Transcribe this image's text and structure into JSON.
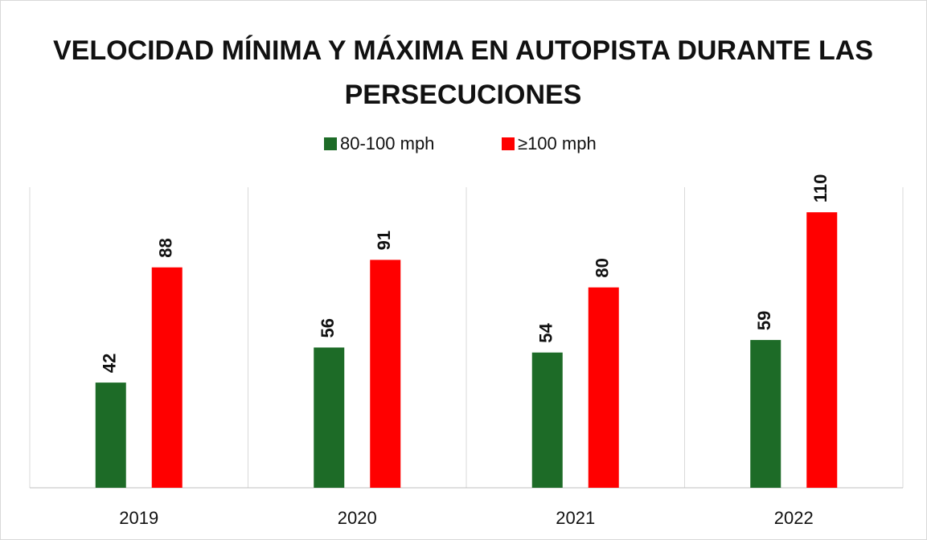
{
  "chart_data": {
    "type": "bar",
    "title": "VELOCIDAD MÍNIMA Y MÁXIMA EN AUTOPISTA DURANTE LAS PERSECUCIONES",
    "categories": [
      "2019",
      "2020",
      "2021",
      "2022"
    ],
    "series": [
      {
        "name": "80-100 mph",
        "color": "#1d6b27",
        "values": [
          42,
          56,
          54,
          59
        ]
      },
      {
        "name": "≥100 mph",
        "color": "#ff0000",
        "values": [
          88,
          91,
          80,
          110
        ]
      }
    ],
    "ylim": [
      0,
      120
    ],
    "legend": "top"
  }
}
